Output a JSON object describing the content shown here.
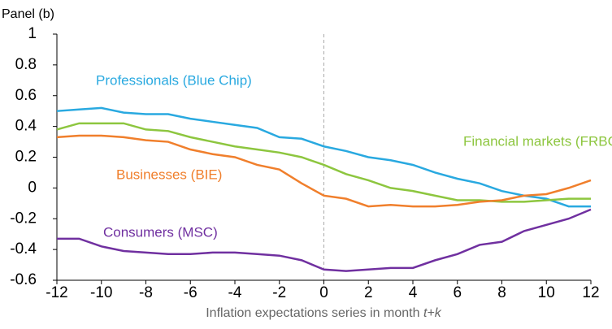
{
  "chart_data": {
    "type": "line",
    "panel": "Panel (b)",
    "xlabel": "Inflation expectations series in month",
    "xlabel_var": "t+k",
    "x": [
      -12,
      -11,
      -10,
      -9,
      -8,
      -7,
      -6,
      -5,
      -4,
      -3,
      -2,
      -1,
      0,
      1,
      2,
      3,
      4,
      5,
      6,
      7,
      8,
      9,
      10,
      11,
      12
    ],
    "series": [
      {
        "name": "Professionals (Blue Chip)",
        "color": "#29a9e0",
        "values": [
          0.5,
          0.51,
          0.52,
          0.49,
          0.48,
          0.48,
          0.45,
          0.43,
          0.41,
          0.39,
          0.33,
          0.32,
          0.27,
          0.24,
          0.2,
          0.18,
          0.15,
          0.1,
          0.06,
          0.03,
          -0.02,
          -0.05,
          -0.07,
          -0.12,
          -0.12
        ]
      },
      {
        "name": "Financial markets (FRBCIE)",
        "color": "#8dc63f",
        "values": [
          0.38,
          0.42,
          0.42,
          0.42,
          0.38,
          0.37,
          0.33,
          0.3,
          0.27,
          0.25,
          0.23,
          0.2,
          0.15,
          0.09,
          0.05,
          0.0,
          -0.02,
          -0.05,
          -0.08,
          -0.08,
          -0.09,
          -0.09,
          -0.08,
          -0.07,
          -0.07
        ]
      },
      {
        "name": "Businesses (BIE)",
        "color": "#f07f2c",
        "values": [
          0.33,
          0.34,
          0.34,
          0.33,
          0.31,
          0.3,
          0.25,
          0.22,
          0.2,
          0.15,
          0.12,
          0.03,
          -0.05,
          -0.07,
          -0.12,
          -0.11,
          -0.12,
          -0.12,
          -0.11,
          -0.09,
          -0.08,
          -0.05,
          -0.04,
          0.0,
          0.05
        ]
      },
      {
        "name": "Consumers (MSC)",
        "color": "#7030a0",
        "values": [
          -0.33,
          -0.33,
          -0.38,
          -0.41,
          -0.42,
          -0.43,
          -0.43,
          -0.42,
          -0.42,
          -0.43,
          -0.44,
          -0.47,
          -0.53,
          -0.54,
          -0.53,
          -0.52,
          -0.52,
          -0.47,
          -0.43,
          -0.37,
          -0.35,
          -0.28,
          -0.24,
          -0.2,
          -0.14
        ]
      }
    ],
    "xlim": [
      -12,
      12
    ],
    "xticks": [
      -12,
      -10,
      -8,
      -6,
      -4,
      -2,
      0,
      2,
      4,
      6,
      8,
      10,
      12
    ],
    "ylim": [
      -0.6,
      1
    ],
    "yticks": [
      -0.6,
      -0.4,
      -0.2,
      0,
      0.2,
      0.4,
      0.6,
      0.8,
      1
    ],
    "vline": 0
  }
}
